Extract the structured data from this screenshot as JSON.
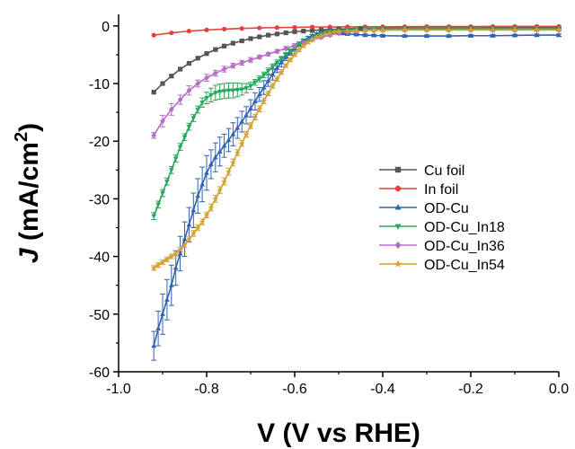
{
  "chart_data": {
    "type": "line",
    "xlabel": "V (V vs RHE)",
    "ylabel_main": "J (mA/cm",
    "ylabel_sup": "2",
    "ylabel_close": ")",
    "xlim": [
      -1.0,
      0.0
    ],
    "ylim": [
      -60,
      2
    ],
    "x_ticks": [
      -1.0,
      -0.8,
      -0.6,
      -0.4,
      -0.2,
      0.0
    ],
    "x_tick_labels": [
      "-1.0",
      "-0.8",
      "-0.6",
      "-0.4",
      "-0.2",
      "0.0"
    ],
    "y_ticks": [
      0,
      -10,
      -20,
      -30,
      -40,
      -50,
      -60
    ],
    "y_tick_labels": [
      "0",
      "-10",
      "-20",
      "-30",
      "-40",
      "-50",
      "-60"
    ],
    "grid": false,
    "legend_position": "right",
    "series": [
      {
        "name": "Cu foil",
        "color": "#555555",
        "marker": "square",
        "x": [
          -0.92,
          -0.9,
          -0.88,
          -0.86,
          -0.84,
          -0.82,
          -0.8,
          -0.78,
          -0.76,
          -0.74,
          -0.72,
          -0.7,
          -0.68,
          -0.66,
          -0.64,
          -0.62,
          -0.6,
          -0.58,
          -0.56,
          -0.54,
          -0.52,
          -0.5,
          -0.48,
          -0.45,
          -0.4,
          -0.35,
          -0.3,
          -0.25,
          -0.2,
          -0.15,
          -0.1,
          -0.05,
          0.0
        ],
        "y": [
          -11.5,
          -10.0,
          -8.7,
          -7.5,
          -6.5,
          -5.6,
          -4.8,
          -4.1,
          -3.5,
          -3.0,
          -2.6,
          -2.2,
          -1.9,
          -1.6,
          -1.4,
          -1.2,
          -1.0,
          -0.9,
          -0.8,
          -0.7,
          -0.6,
          -0.55,
          -0.5,
          -0.45,
          -0.4,
          -0.38,
          -0.36,
          -0.35,
          -0.34,
          -0.33,
          -0.32,
          -0.31,
          -0.3
        ]
      },
      {
        "name": "In foil",
        "color": "#e8413a",
        "marker": "circle",
        "x": [
          -0.92,
          -0.88,
          -0.84,
          -0.8,
          -0.76,
          -0.72,
          -0.68,
          -0.64,
          -0.6,
          -0.56,
          -0.52,
          -0.48,
          -0.44,
          -0.4,
          -0.35,
          -0.3,
          -0.25,
          -0.2,
          -0.15,
          -0.1,
          -0.05,
          0.0
        ],
        "y": [
          -1.6,
          -1.2,
          -0.9,
          -0.7,
          -0.55,
          -0.45,
          -0.35,
          -0.3,
          -0.25,
          -0.2,
          -0.18,
          -0.16,
          -0.15,
          -0.14,
          -0.13,
          -0.12,
          -0.12,
          -0.11,
          -0.1,
          -0.1,
          -0.1,
          -0.1
        ]
      },
      {
        "name": "OD-Cu",
        "color": "#2f63b3",
        "marker": "triangle-up",
        "x": [
          -0.92,
          -0.91,
          -0.9,
          -0.89,
          -0.88,
          -0.87,
          -0.86,
          -0.85,
          -0.84,
          -0.83,
          -0.82,
          -0.81,
          -0.8,
          -0.79,
          -0.78,
          -0.77,
          -0.76,
          -0.75,
          -0.74,
          -0.73,
          -0.72,
          -0.71,
          -0.7,
          -0.69,
          -0.68,
          -0.67,
          -0.66,
          -0.65,
          -0.64,
          -0.63,
          -0.62,
          -0.61,
          -0.6,
          -0.59,
          -0.58,
          -0.57,
          -0.56,
          -0.55,
          -0.54,
          -0.53,
          -0.52,
          -0.51,
          -0.5,
          -0.49,
          -0.48,
          -0.46,
          -0.44,
          -0.42,
          -0.4,
          -0.35,
          -0.3,
          -0.25,
          -0.2,
          -0.15,
          -0.1,
          -0.05,
          0.0
        ],
        "y": [
          -55.5,
          -52.5,
          -50.0,
          -47.5,
          -45.0,
          -42.0,
          -39.5,
          -37.0,
          -34.5,
          -32.0,
          -29.5,
          -27.5,
          -25.5,
          -24.0,
          -22.8,
          -21.8,
          -20.8,
          -19.8,
          -18.8,
          -17.7,
          -16.6,
          -15.5,
          -14.3,
          -13.1,
          -11.9,
          -10.7,
          -9.5,
          -8.4,
          -7.3,
          -6.3,
          -5.4,
          -4.6,
          -3.9,
          -3.2,
          -2.6,
          -2.1,
          -1.7,
          -1.4,
          -1.2,
          -1.1,
          -1.05,
          -1.1,
          -1.2,
          -1.3,
          -1.4,
          -1.5,
          -1.6,
          -1.65,
          -1.7,
          -1.75,
          -1.75,
          -1.75,
          -1.7,
          -1.7,
          -1.65,
          -1.6,
          -1.6
        ],
        "error": [
          2.5,
          3.0,
          3.5,
          3.5,
          3.5,
          3.0,
          3.0,
          3.0,
          3.0,
          3.0,
          3.0,
          3.0,
          3.0,
          2.5,
          2.5,
          2.5,
          2.0,
          2.0,
          2.0,
          1.8,
          1.8,
          1.5,
          1.5,
          1.5,
          1.2,
          1.2,
          1.0,
          1.0,
          0.8,
          0.8,
          0.6,
          0.5,
          0.5,
          0.4,
          0.3,
          0.3,
          0.2,
          0.2,
          0.2,
          0.2,
          0.2,
          0.2,
          0.2,
          0.2,
          0.2,
          0.2,
          0.2,
          0.2,
          0.2,
          0.2,
          0.2,
          0.2,
          0.2,
          0.2,
          0.2,
          0.2,
          0.2
        ]
      },
      {
        "name": "OD-Cu_In18",
        "color": "#27a85a",
        "marker": "triangle-down",
        "x": [
          -0.92,
          -0.91,
          -0.9,
          -0.89,
          -0.88,
          -0.87,
          -0.86,
          -0.85,
          -0.84,
          -0.83,
          -0.82,
          -0.81,
          -0.8,
          -0.79,
          -0.78,
          -0.77,
          -0.76,
          -0.75,
          -0.74,
          -0.73,
          -0.72,
          -0.71,
          -0.7,
          -0.69,
          -0.68,
          -0.67,
          -0.66,
          -0.65,
          -0.64,
          -0.63,
          -0.62,
          -0.61,
          -0.6,
          -0.59,
          -0.58,
          -0.57,
          -0.56,
          -0.55,
          -0.54,
          -0.53,
          -0.52,
          -0.51,
          -0.5,
          -0.48,
          -0.46,
          -0.44,
          -0.42,
          -0.4,
          -0.35,
          -0.3,
          -0.25,
          -0.2,
          -0.15,
          -0.1,
          -0.05,
          0.0
        ],
        "y": [
          -33.0,
          -31.0,
          -29.0,
          -27.0,
          -25.0,
          -23.0,
          -21.0,
          -19.3,
          -17.5,
          -16.0,
          -14.5,
          -13.3,
          -12.5,
          -12.0,
          -11.6,
          -11.4,
          -11.3,
          -11.2,
          -11.2,
          -11.1,
          -11.0,
          -10.8,
          -10.4,
          -9.8,
          -9.2,
          -8.5,
          -7.8,
          -7.1,
          -6.4,
          -5.7,
          -5.0,
          -4.4,
          -3.8,
          -3.3,
          -2.8,
          -2.4,
          -2.0,
          -1.7,
          -1.4,
          -1.2,
          -1.0,
          -0.9,
          -0.8,
          -0.7,
          -0.6,
          -0.55,
          -0.5,
          -0.5,
          -0.45,
          -0.45,
          -0.45,
          -0.45,
          -0.45,
          -0.45,
          -0.45,
          -0.45
        ],
        "error": [
          0.6,
          0.6,
          0.6,
          0.6,
          0.6,
          0.6,
          0.6,
          0.6,
          0.6,
          0.6,
          0.6,
          0.8,
          1.0,
          1.2,
          1.3,
          1.3,
          1.3,
          1.3,
          1.3,
          1.2,
          1.0,
          0.8,
          0.6,
          0.5,
          0.5,
          0.5,
          0.5,
          0.5,
          0.5,
          0.4,
          0.4,
          0.4,
          0.3,
          0.3,
          0.3,
          0.2,
          0.2,
          0.2,
          0.2,
          0.2,
          0.2,
          0.2,
          0.2,
          0.2,
          0.2,
          0.2,
          0.2,
          0.2,
          0.2,
          0.2,
          0.2,
          0.2,
          0.2,
          0.2,
          0.2,
          0.2
        ]
      },
      {
        "name": "OD-Cu_In36",
        "color": "#b56fc5",
        "marker": "diamond",
        "x": [
          -0.92,
          -0.9,
          -0.88,
          -0.86,
          -0.84,
          -0.82,
          -0.8,
          -0.78,
          -0.76,
          -0.74,
          -0.72,
          -0.7,
          -0.68,
          -0.66,
          -0.64,
          -0.62,
          -0.6,
          -0.58,
          -0.56,
          -0.54,
          -0.52,
          -0.5,
          -0.48,
          -0.46,
          -0.44,
          -0.42,
          -0.4,
          -0.35,
          -0.3,
          -0.25,
          -0.2,
          -0.15,
          -0.1,
          -0.05,
          0.0
        ],
        "y": [
          -19.0,
          -16.5,
          -14.5,
          -12.8,
          -11.2,
          -10.0,
          -9.0,
          -8.2,
          -7.5,
          -6.9,
          -6.4,
          -5.9,
          -5.4,
          -4.9,
          -4.4,
          -3.9,
          -3.4,
          -2.9,
          -2.4,
          -2.0,
          -1.6,
          -1.3,
          -1.1,
          -0.9,
          -0.8,
          -0.75,
          -0.7,
          -0.7,
          -0.7,
          -0.7,
          -0.7,
          -0.7,
          -0.7,
          -0.7,
          -0.7
        ],
        "error": [
          0.5,
          1.0,
          1.0,
          0.8,
          0.8,
          0.6,
          0.6,
          0.5,
          0.5,
          0.4,
          0.4,
          0.4,
          0.3,
          0.3,
          0.3,
          0.3,
          0.3,
          0.2,
          0.2,
          0.2,
          0.2,
          0.2,
          0.2,
          0.2,
          0.2,
          0.2,
          0.2,
          0.2,
          0.2,
          0.2,
          0.2,
          0.2,
          0.2,
          0.2,
          0.2
        ]
      },
      {
        "name": "OD-Cu_In54",
        "color": "#d4a232",
        "marker": "star",
        "x": [
          -0.92,
          -0.91,
          -0.9,
          -0.89,
          -0.88,
          -0.87,
          -0.86,
          -0.85,
          -0.84,
          -0.83,
          -0.82,
          -0.81,
          -0.8,
          -0.79,
          -0.78,
          -0.77,
          -0.76,
          -0.75,
          -0.74,
          -0.73,
          -0.72,
          -0.71,
          -0.7,
          -0.69,
          -0.68,
          -0.67,
          -0.66,
          -0.65,
          -0.64,
          -0.63,
          -0.62,
          -0.61,
          -0.6,
          -0.59,
          -0.58,
          -0.57,
          -0.56,
          -0.55,
          -0.54,
          -0.53,
          -0.52,
          -0.51,
          -0.5,
          -0.48,
          -0.46,
          -0.44,
          -0.42,
          -0.4,
          -0.35,
          -0.3,
          -0.25,
          -0.2,
          -0.15,
          -0.1,
          -0.05,
          0.0
        ],
        "y": [
          -42.0,
          -41.5,
          -41.0,
          -40.5,
          -40.0,
          -39.5,
          -38.8,
          -38.0,
          -37.0,
          -36.0,
          -35.0,
          -34.0,
          -32.8,
          -31.5,
          -30.0,
          -28.5,
          -27.0,
          -25.3,
          -23.7,
          -22.0,
          -20.4,
          -18.8,
          -17.3,
          -15.8,
          -14.4,
          -13.0,
          -11.7,
          -10.4,
          -9.2,
          -8.0,
          -6.9,
          -5.9,
          -5.0,
          -4.2,
          -3.5,
          -2.9,
          -2.4,
          -2.0,
          -1.7,
          -1.45,
          -1.25,
          -1.1,
          -1.0,
          -0.9,
          -0.85,
          -0.8,
          -0.75,
          -0.75,
          -0.7,
          -0.7,
          -0.7,
          -0.7,
          -0.7,
          -0.7,
          -0.7,
          -0.7
        ],
        "error": [
          0.4,
          0.4,
          0.4,
          0.4,
          0.4,
          0.4,
          0.4,
          0.4,
          0.4,
          0.5,
          0.5,
          0.5,
          0.5,
          0.6,
          0.6,
          0.6,
          0.6,
          0.6,
          0.6,
          0.5,
          0.5,
          0.5,
          0.5,
          0.5,
          0.5,
          0.5,
          0.4,
          0.4,
          0.4,
          0.4,
          0.3,
          0.3,
          0.3,
          0.3,
          0.2,
          0.2,
          0.2,
          0.2,
          0.2,
          0.2,
          0.2,
          0.2,
          0.2,
          0.2,
          0.2,
          0.2,
          0.2,
          0.2,
          0.2,
          0.2,
          0.2,
          0.2,
          0.2,
          0.2,
          0.2,
          0.2
        ]
      }
    ]
  }
}
